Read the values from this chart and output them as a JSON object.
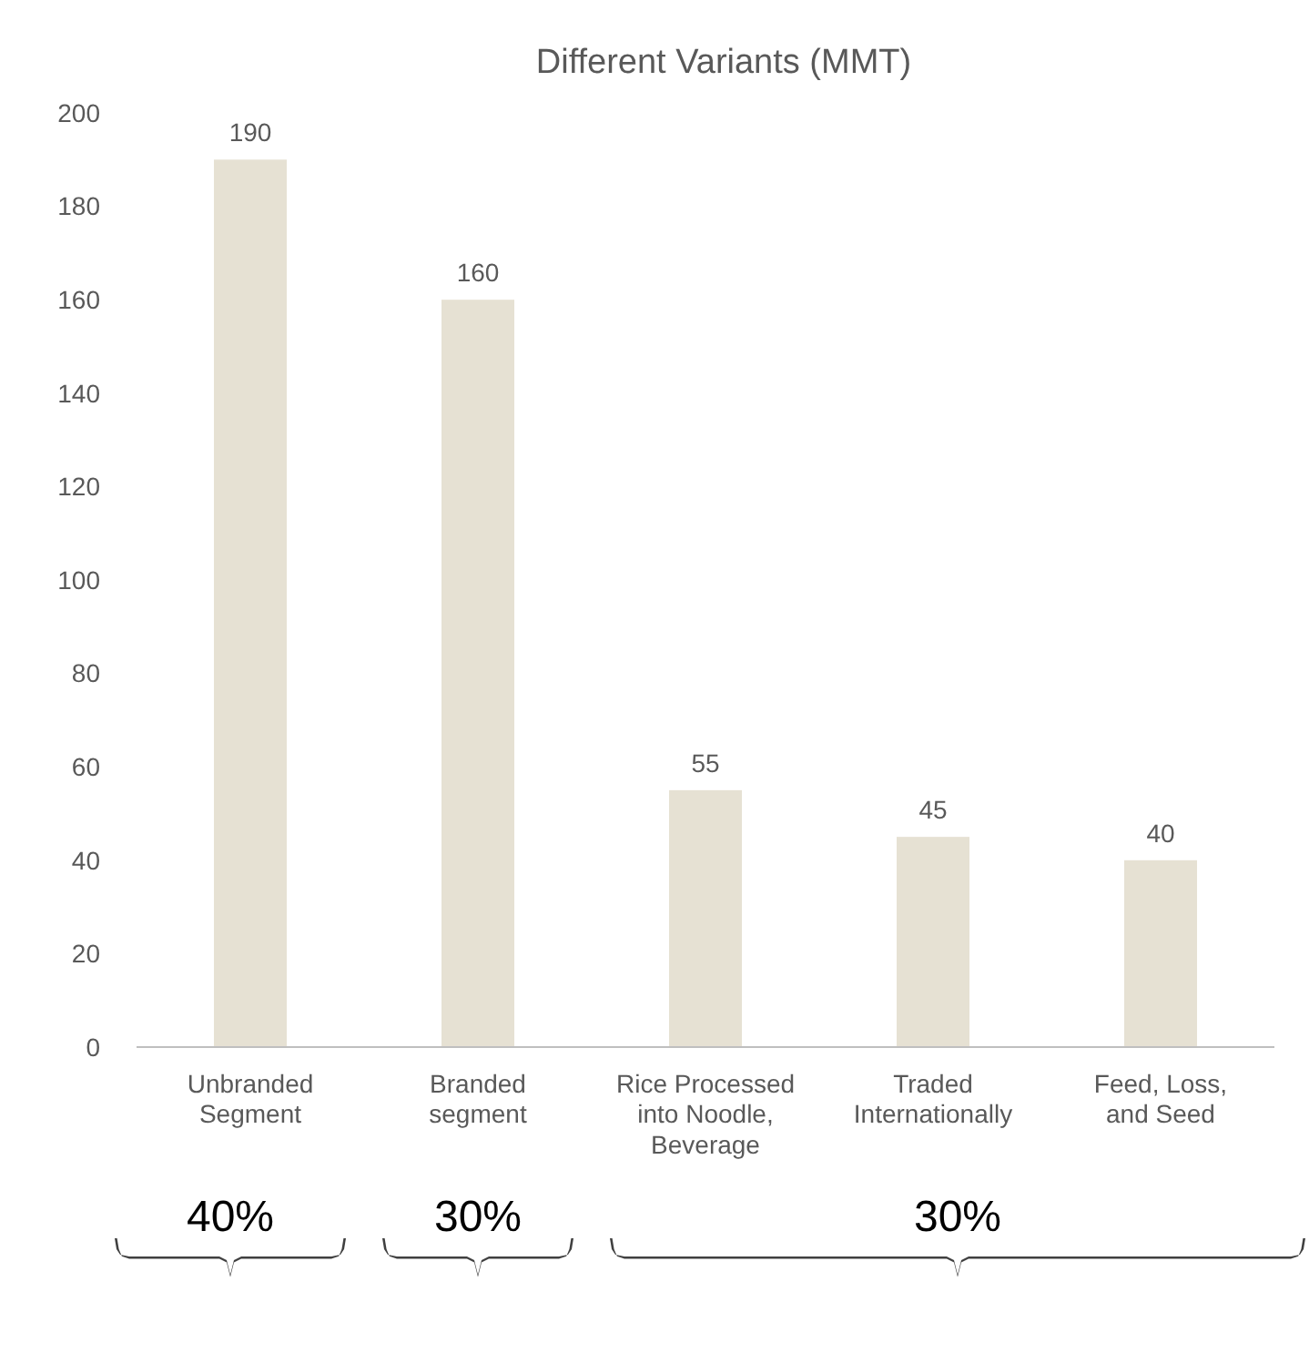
{
  "chart_data": {
    "type": "bar",
    "title": "Different Variants (MMT)",
    "categories": [
      "Unbranded Segment",
      "Branded segment",
      "Rice Processed into Noodle, Beverage",
      "Traded Internationally",
      "Feed, Loss, and Seed"
    ],
    "values": [
      190,
      160,
      55,
      45,
      40
    ],
    "color": "#e6e1d3",
    "ylim": [
      0,
      200
    ],
    "yticks": [
      0,
      20,
      40,
      60,
      80,
      100,
      120,
      140,
      160,
      180,
      200
    ],
    "grid": false,
    "data_labels": true,
    "annotations": [
      "40%",
      "30%",
      "30%"
    ]
  }
}
